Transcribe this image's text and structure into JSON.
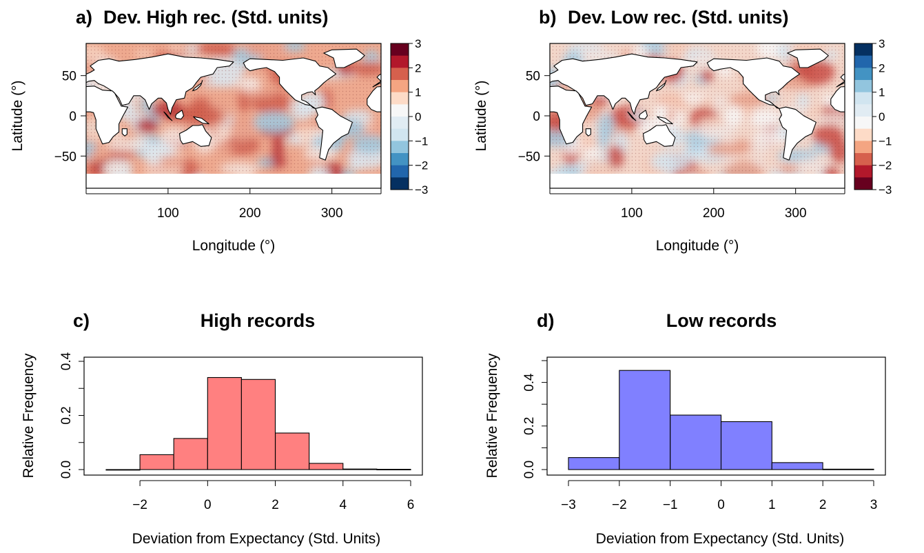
{
  "chart_data": [
    {
      "type": "heatmap",
      "panel_label": "a)",
      "title": "Dev. High rec. (Std. units)",
      "xlabel": "Longitude (°)",
      "ylabel": "Latitude (°)",
      "xlim": [
        0,
        360
      ],
      "ylim": [
        -90,
        90
      ],
      "xticks": [
        100,
        200,
        300
      ],
      "yticks": [
        -50,
        0,
        50
      ],
      "colorbar": {
        "ticks": [
          "3",
          "2",
          "1",
          "0",
          "−1",
          "−2",
          "−3"
        ],
        "colors_top_to_bottom": [
          "#67001f",
          "#b2182b",
          "#d6604d",
          "#f4a582",
          "#fddbc7",
          "#f7f7f7",
          "#e1ecf3",
          "#d1e5f0",
          "#92c5de",
          "#4393c3",
          "#2166ac",
          "#053061"
        ]
      },
      "background_colors": [
        "#e9a08a",
        "#f7d3c2",
        "#d05f4f",
        "#f3e6e0",
        "#dbe9f2",
        "#b7353a",
        "#9fc9e0"
      ]
    },
    {
      "type": "heatmap",
      "panel_label": "b)",
      "title": "Dev. Low rec. (Std. units)",
      "xlabel": "Longitude (°)",
      "ylabel": "Latitude (°)",
      "xlim": [
        0,
        360
      ],
      "ylim": [
        -90,
        90
      ],
      "xticks": [
        100,
        200,
        300
      ],
      "yticks": [
        -50,
        0,
        50
      ],
      "colorbar": {
        "ticks": [
          "3",
          "2",
          "1",
          "0",
          "−1",
          "−2",
          "−3"
        ],
        "colors_top_to_bottom": [
          "#053061",
          "#2166ac",
          "#4393c3",
          "#92c5de",
          "#d1e5f0",
          "#e1ecf3",
          "#f7f7f7",
          "#fddbc7",
          "#f4a582",
          "#d6604d",
          "#b2182b",
          "#67001f"
        ]
      },
      "background_colors": [
        "#f4c9b6",
        "#f0e3de",
        "#e8a08a",
        "#d5e6f1",
        "#c94d47",
        "#f7f7f7",
        "#a9cee3"
      ]
    },
    {
      "type": "bar",
      "panel_label": "c)",
      "title": "High records",
      "xlabel": "Deviation from Expectancy (Std. Units)",
      "ylabel": "Relative Frequency",
      "bin_edges": [
        -3,
        -2,
        -1,
        0,
        1,
        2,
        3,
        4,
        5,
        6
      ],
      "values": [
        0.0,
        0.055,
        0.115,
        0.34,
        0.333,
        0.135,
        0.023,
        0.002,
        0.001
      ],
      "xlim": [
        -3,
        6
      ],
      "ylim": [
        0,
        0.4
      ],
      "xticks": [
        -2,
        0,
        2,
        4,
        6
      ],
      "xtick_labels": [
        "−2",
        "0",
        "2",
        "4",
        "6"
      ],
      "yticks": [
        0.0,
        0.1,
        0.2,
        0.3,
        0.4
      ],
      "ytick_labels": [
        "0.0",
        "",
        "0.2",
        "",
        "0.4"
      ],
      "bar_color": "#ff8080"
    },
    {
      "type": "bar",
      "panel_label": "d)",
      "title": "Low records",
      "xlabel": "Deviation from Expectancy (Std. Units)",
      "ylabel": "Relative Frequency",
      "bin_edges": [
        -3,
        -2,
        -1,
        0,
        1,
        2,
        3
      ],
      "values": [
        0.055,
        0.455,
        0.25,
        0.22,
        0.032,
        0.002
      ],
      "xlim": [
        -3,
        3
      ],
      "ylim": [
        0,
        0.5
      ],
      "xticks": [
        -3,
        -2,
        -1,
        0,
        1,
        2,
        3
      ],
      "xtick_labels": [
        "−3",
        "−2",
        "−1",
        "0",
        "1",
        "2",
        "3"
      ],
      "yticks": [
        0.0,
        0.1,
        0.2,
        0.3,
        0.4,
        0.5
      ],
      "ytick_labels": [
        "0.0",
        "",
        "0.2",
        "",
        "0.4",
        ""
      ],
      "bar_color": "#8080ff"
    }
  ]
}
